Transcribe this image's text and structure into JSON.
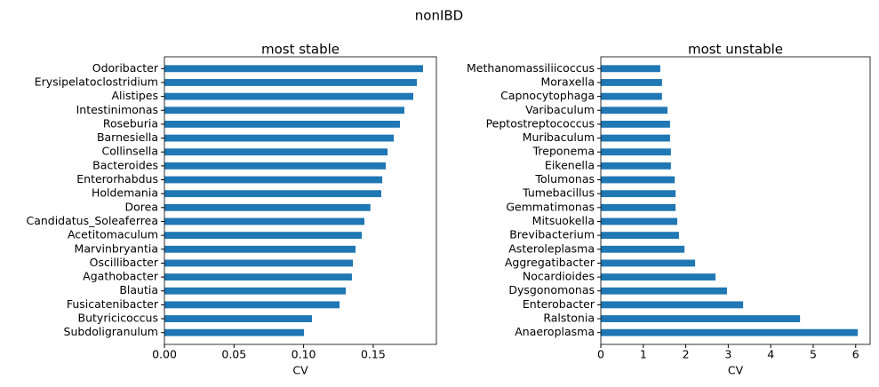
{
  "title": "nonIBD",
  "chart_data": [
    {
      "type": "barh",
      "title": "most stable",
      "x_label": "CV",
      "color": "#1f77b4",
      "categories": [
        "Odoribacter",
        "Erysipelatoclostridium",
        "Alistipes",
        "Intestinimonas",
        "Roseburia",
        "Barnesiella",
        "Collinsella",
        "Bacteroides",
        "Enterorhabdus",
        "Holdemania",
        "Dorea",
        "Candidatus_Soleaferrea",
        "Acetitomaculum",
        "Marvinbryantia",
        "Oscillibacter",
        "Agathobacter",
        "Blautia",
        "Fusicatenibacter",
        "Butyricicoccus",
        "Subdoligranulum"
      ],
      "values": [
        0.1858,
        0.1814,
        0.1788,
        0.1724,
        0.1692,
        0.1648,
        0.1603,
        0.159,
        0.1565,
        0.1558,
        0.148,
        0.1437,
        0.1418,
        0.1373,
        0.1354,
        0.1347,
        0.1303,
        0.1258,
        0.106,
        0.1003
      ],
      "xlim": [
        0,
        0.1954
      ],
      "xticks": [
        {
          "value": 0,
          "label": "0.00"
        },
        {
          "value": 0.05,
          "label": "0.05"
        },
        {
          "value": 0.1,
          "label": "0.10"
        },
        {
          "value": 0.15,
          "label": "0.15"
        }
      ]
    },
    {
      "type": "barh",
      "title": "most unstable",
      "x_label": "CV",
      "color": "#1f77b4",
      "categories": [
        "Methanomassiliicoccus",
        "Moraxella",
        "Capnocytophaga",
        "Varibaculum",
        "Peptostreptococcus",
        "Muribaculum",
        "Treponema",
        "Eikenella",
        "Tolumonas",
        "Tumebacillus",
        "Gemmatimonas",
        "Mitsuokella",
        "Brevibacterium",
        "Asteroleplasma",
        "Aggregatibacter",
        "Nocardioides",
        "Dysgonomonas",
        "Enterobacter",
        "Ralstonia",
        "Anaeroplasma"
      ],
      "values": [
        1.4,
        1.44,
        1.44,
        1.57,
        1.63,
        1.63,
        1.65,
        1.65,
        1.74,
        1.76,
        1.76,
        1.8,
        1.84,
        1.97,
        2.22,
        2.7,
        2.97,
        3.35,
        4.69,
        6.05
      ],
      "xlim": [
        0,
        6.34
      ],
      "xticks": [
        0,
        1,
        2,
        3,
        4,
        5,
        6
      ]
    }
  ]
}
